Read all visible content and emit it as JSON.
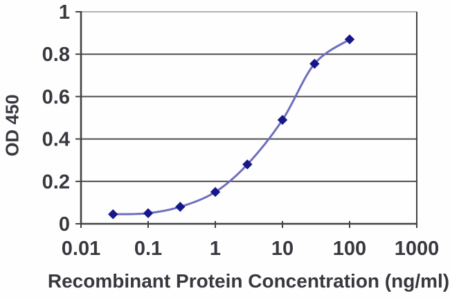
{
  "chart_data": {
    "type": "line",
    "title": "",
    "xlabel": "Recombinant Protein Concentration (ng/ml)",
    "ylabel": "OD 450",
    "x_scale": "log",
    "y_scale": "linear",
    "xlim": [
      0.01,
      1000
    ],
    "ylim": [
      0,
      1
    ],
    "x_ticks": [
      "0.01",
      "0.1",
      "1",
      "10",
      "100",
      "1000"
    ],
    "x_tick_values": [
      0.01,
      0.1,
      1,
      10,
      100,
      1000
    ],
    "y_ticks": [
      "0",
      "0.2",
      "0.4",
      "0.6",
      "0.8",
      "1"
    ],
    "y_tick_values": [
      0,
      0.2,
      0.4,
      0.6,
      0.8,
      1
    ],
    "grid": "horizontal",
    "legend_position": "none",
    "series": [
      {
        "name": "OD 450",
        "marker": "diamond",
        "line_style": "smooth",
        "x": [
          0.03,
          0.1,
          0.3,
          1,
          3,
          10,
          30,
          100
        ],
        "y": [
          0.045,
          0.05,
          0.08,
          0.15,
          0.28,
          0.49,
          0.755,
          0.87
        ]
      }
    ],
    "colors": {
      "line": "#6e6ebe",
      "marker": "#17178c",
      "grid": "#4d4d4d",
      "top_border": "#9a9a9a",
      "axis": "#424242",
      "tick": "#424242",
      "text": "#38383f",
      "background": "#fefefe"
    }
  }
}
